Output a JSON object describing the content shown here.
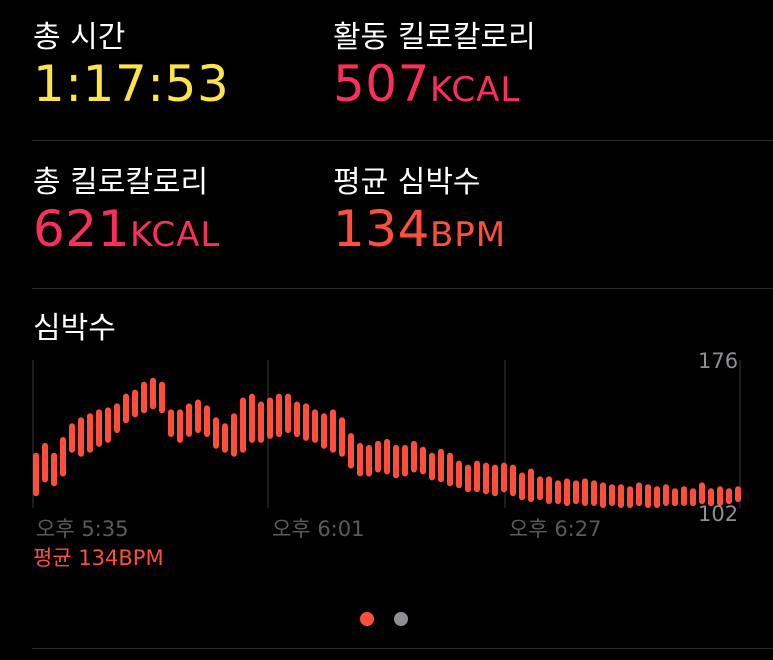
{
  "metrics": {
    "total_time": {
      "label": "총 시간",
      "value": "1:17:53",
      "unit": "",
      "color": "#fde24a"
    },
    "active_calories": {
      "label": "활동 킬로칼로리",
      "value": "507",
      "unit": "KCAL",
      "color": "#fa2f5b"
    },
    "total_calories": {
      "label": "총 킬로칼로리",
      "value": "621",
      "unit": "KCAL",
      "color": "#fa2f5b"
    },
    "avg_heart_rate": {
      "label": "평균 심박수",
      "value": "134",
      "unit": "BPM",
      "color": "#ff4f3b"
    }
  },
  "heart_rate_section": {
    "title": "심박수",
    "time_labels": [
      "오후 5:35",
      "오후 6:01",
      "오후 6:27"
    ],
    "axis_max_label": "176",
    "axis_min_label": "102",
    "average_label": "평균 134BPM"
  },
  "chart_data": {
    "type": "range-bar",
    "ylim": [
      102,
      176
    ],
    "color": "#ff4f3b",
    "x": [
      "5:35",
      "5:36",
      "5:37",
      "5:38",
      "5:39",
      "5:40",
      "5:41",
      "5:42",
      "5:43",
      "5:44",
      "5:45",
      "5:46",
      "5:47",
      "5:48",
      "5:49",
      "5:50",
      "5:51",
      "5:52",
      "5:53",
      "5:54",
      "5:55",
      "5:56",
      "5:57",
      "5:58",
      "5:59",
      "6:00",
      "6:01",
      "6:02",
      "6:03",
      "6:04",
      "6:05",
      "6:06",
      "6:07",
      "6:08",
      "6:09",
      "6:10",
      "6:11",
      "6:12",
      "6:13",
      "6:14",
      "6:15",
      "6:16",
      "6:17",
      "6:18",
      "6:19",
      "6:20",
      "6:21",
      "6:22",
      "6:23",
      "6:24",
      "6:25",
      "6:26",
      "6:27",
      "6:28",
      "6:29",
      "6:30",
      "6:31",
      "6:32",
      "6:33",
      "6:34",
      "6:35",
      "6:36",
      "6:37",
      "6:38",
      "6:39",
      "6:40",
      "6:41",
      "6:42",
      "6:43",
      "6:44",
      "6:45",
      "6:46",
      "6:47",
      "6:48",
      "6:49",
      "6:50",
      "6:51",
      "6:52",
      "6:53"
    ],
    "ranges": [
      [
        108,
        130
      ],
      [
        115,
        135
      ],
      [
        113,
        130
      ],
      [
        118,
        138
      ],
      [
        130,
        145
      ],
      [
        128,
        148
      ],
      [
        130,
        150
      ],
      [
        133,
        152
      ],
      [
        135,
        153
      ],
      [
        140,
        155
      ],
      [
        145,
        160
      ],
      [
        148,
        162
      ],
      [
        150,
        166
      ],
      [
        152,
        168
      ],
      [
        150,
        166
      ],
      [
        138,
        152
      ],
      [
        135,
        152
      ],
      [
        138,
        155
      ],
      [
        140,
        157
      ],
      [
        138,
        154
      ],
      [
        132,
        148
      ],
      [
        130,
        145
      ],
      [
        128,
        150
      ],
      [
        130,
        158
      ],
      [
        135,
        160
      ],
      [
        135,
        156
      ],
      [
        137,
        158
      ],
      [
        138,
        160
      ],
      [
        140,
        160
      ],
      [
        138,
        156
      ],
      [
        136,
        155
      ],
      [
        135,
        152
      ],
      [
        132,
        150
      ],
      [
        130,
        152
      ],
      [
        128,
        148
      ],
      [
        122,
        140
      ],
      [
        118,
        135
      ],
      [
        118,
        134
      ],
      [
        120,
        136
      ],
      [
        119,
        137
      ],
      [
        117,
        134
      ],
      [
        118,
        134
      ],
      [
        120,
        136
      ],
      [
        119,
        133
      ],
      [
        116,
        130
      ],
      [
        115,
        132
      ],
      [
        113,
        130
      ],
      [
        112,
        126
      ],
      [
        110,
        124
      ],
      [
        110,
        126
      ],
      [
        109,
        125
      ],
      [
        108,
        124
      ],
      [
        110,
        125
      ],
      [
        108,
        124
      ],
      [
        106,
        120
      ],
      [
        105,
        122
      ],
      [
        106,
        118
      ],
      [
        104,
        118
      ],
      [
        104,
        116
      ],
      [
        103,
        117
      ],
      [
        104,
        116
      ],
      [
        103,
        117
      ],
      [
        103,
        116
      ],
      [
        102,
        115
      ],
      [
        103,
        114
      ],
      [
        102,
        114
      ],
      [
        102,
        113
      ],
      [
        103,
        115
      ],
      [
        102,
        114
      ],
      [
        102,
        113
      ],
      [
        103,
        114
      ],
      [
        103,
        112
      ],
      [
        103,
        113
      ],
      [
        103,
        112
      ],
      [
        104,
        115
      ],
      [
        103,
        112
      ],
      [
        103,
        113
      ],
      [
        104,
        112
      ],
      [
        105,
        113
      ]
    ]
  }
}
